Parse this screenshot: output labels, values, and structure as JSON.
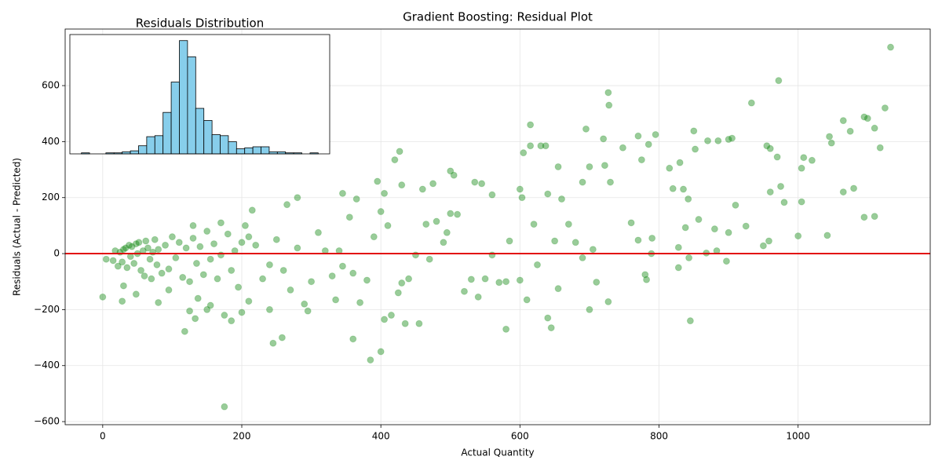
{
  "chart_data": [
    {
      "type": "scatter",
      "title": "Gradient Boosting: Residual Plot",
      "x_label": "Actual Quantity",
      "y_label": "Residuals (Actual - Predicted)",
      "color": "#008000",
      "alpha": 0.4,
      "grid": true,
      "hline": 0,
      "hline_color": "#e00000",
      "xlim": [
        -54,
        1190
      ],
      "ylim": [
        -611,
        802
      ],
      "xticks": [
        0,
        200,
        400,
        600,
        800,
        1000
      ],
      "yticks": [
        {
          "value": -600,
          "label": "−600"
        },
        {
          "value": -400,
          "label": "−400"
        },
        {
          "value": -200,
          "label": "−200"
        },
        0,
        200,
        400,
        600
      ],
      "x": [
        15,
        18,
        22,
        25,
        28,
        30,
        33,
        35,
        38,
        40,
        42,
        45,
        48,
        50,
        52,
        55,
        58,
        60,
        62,
        65,
        68,
        70,
        72,
        75,
        78,
        80,
        85,
        90,
        95,
        100,
        105,
        110,
        115,
        120,
        125,
        130,
        135,
        140,
        145,
        150,
        155,
        160,
        165,
        170,
        180,
        185,
        190,
        195,
        200,
        205,
        0,
        5,
        28,
        30,
        48,
        80,
        95,
        118,
        125,
        133,
        137,
        150,
        155,
        175,
        175,
        185,
        200,
        210,
        245,
        258,
        240,
        295,
        335,
        360,
        385,
        400,
        405,
        415,
        435,
        455,
        580,
        610,
        640,
        645,
        700,
        845,
        130,
        170,
        215,
        265,
        280,
        345,
        365,
        395,
        405,
        420,
        427,
        430,
        460,
        475,
        500,
        505,
        535,
        545,
        560,
        600,
        605,
        615,
        615,
        630,
        637,
        655,
        690,
        695,
        700,
        720,
        722,
        727,
        728,
        730,
        748,
        770,
        775,
        785,
        795,
        815,
        820,
        830,
        835,
        850,
        852,
        870,
        885,
        900,
        905,
        933,
        955,
        960,
        970,
        972,
        975,
        1005,
        1008,
        1020,
        1045,
        1048,
        1065,
        1075,
        1080,
        1095,
        1100,
        1110,
        1118,
        1125,
        1133,
        1095,
        1110,
        1042,
        1000,
        1005,
        1065,
        980,
        960,
        958,
        950,
        925,
        910,
        900,
        897,
        883,
        880,
        868,
        843,
        828,
        828,
        838,
        842,
        857,
        780,
        782,
        790,
        789,
        770,
        760,
        727,
        710,
        705,
        690,
        680,
        670,
        660,
        655,
        650,
        640,
        625,
        620,
        603,
        600,
        585,
        580,
        570,
        560,
        550,
        540,
        530,
        520,
        510,
        500,
        495,
        490,
        480,
        470,
        465,
        450,
        440,
        430,
        425,
        410,
        400,
        390,
        380,
        370,
        360,
        355,
        345,
        340,
        330,
        320,
        310,
        300,
        290,
        280,
        270,
        260,
        250,
        240,
        230,
        220,
        210
      ],
      "values": [
        -25,
        10,
        -45,
        5,
        -30,
        15,
        20,
        -50,
        30,
        -10,
        25,
        -35,
        35,
        0,
        40,
        -60,
        10,
        -80,
        45,
        20,
        -20,
        -90,
        5,
        50,
        -40,
        15,
        -70,
        30,
        -55,
        60,
        -15,
        40,
        -85,
        20,
        -100,
        55,
        -35,
        25,
        -75,
        80,
        -20,
        35,
        -90,
        -5,
        70,
        -60,
        10,
        -120,
        40,
        100,
        -155,
        -20,
        -170,
        -115,
        -145,
        -175,
        -130,
        -278,
        -205,
        -232,
        -160,
        -200,
        -185,
        -547,
        -220,
        -240,
        -210,
        -170,
        -320,
        -300,
        -200,
        -205,
        -165,
        -305,
        -380,
        -350,
        -235,
        -220,
        -250,
        -250,
        -270,
        -165,
        -230,
        -265,
        -200,
        -240,
        100,
        110,
        155,
        175,
        200,
        215,
        195,
        258,
        215,
        335,
        365,
        245,
        230,
        250,
        295,
        280,
        255,
        250,
        210,
        230,
        360,
        460,
        385,
        385,
        385,
        310,
        255,
        445,
        310,
        410,
        315,
        575,
        530,
        255,
        378,
        420,
        335,
        390,
        425,
        305,
        232,
        325,
        230,
        438,
        373,
        403,
        403,
        408,
        412,
        538,
        385,
        375,
        345,
        618,
        240,
        305,
        343,
        333,
        418,
        395,
        475,
        437,
        233,
        488,
        483,
        448,
        378,
        520,
        737,
        130,
        133,
        65,
        63,
        185,
        220,
        183,
        220,
        45,
        28,
        98,
        173,
        75,
        -27,
        10,
        88,
        2,
        -15,
        -50,
        22,
        93,
        195,
        122,
        -75,
        -93,
        55,
        0,
        48,
        110,
        -172,
        -102,
        15,
        -15,
        40,
        105,
        195,
        -125,
        45,
        213,
        -40,
        105,
        200,
        -95,
        45,
        -100,
        -103,
        -5,
        -90,
        -155,
        -92,
        -135,
        140,
        143,
        75,
        40,
        115,
        -20,
        105,
        -5,
        -90,
        -105,
        -140,
        100,
        150,
        60,
        -95,
        -175,
        -70,
        130,
        -45,
        10,
        -80,
        10,
        75,
        -100,
        -180,
        20,
        -130,
        -60,
        50,
        -40,
        -90,
        30,
        60
      ]
    },
    {
      "type": "histogram",
      "title": "Residuals Distribution",
      "color": "#87ceeb",
      "edge_color": "#000000",
      "xlim": [
        -609,
        791
      ],
      "ylim": [
        0,
        118
      ],
      "bins": [
        -547,
        -503,
        -459,
        -415,
        -371,
        -327,
        -283,
        -239,
        -195,
        -151,
        -107,
        -63,
        -19,
        25,
        69,
        113,
        157,
        201,
        245,
        289,
        333,
        377,
        421,
        465,
        509,
        553,
        597,
        641,
        685,
        729
      ],
      "values": [
        1,
        0,
        0,
        1,
        1,
        2,
        3,
        8,
        17,
        18,
        41,
        71,
        112,
        96,
        45,
        33,
        19,
        18,
        12,
        5,
        6,
        7,
        7,
        2,
        2,
        1,
        1,
        0,
        1
      ]
    }
  ]
}
